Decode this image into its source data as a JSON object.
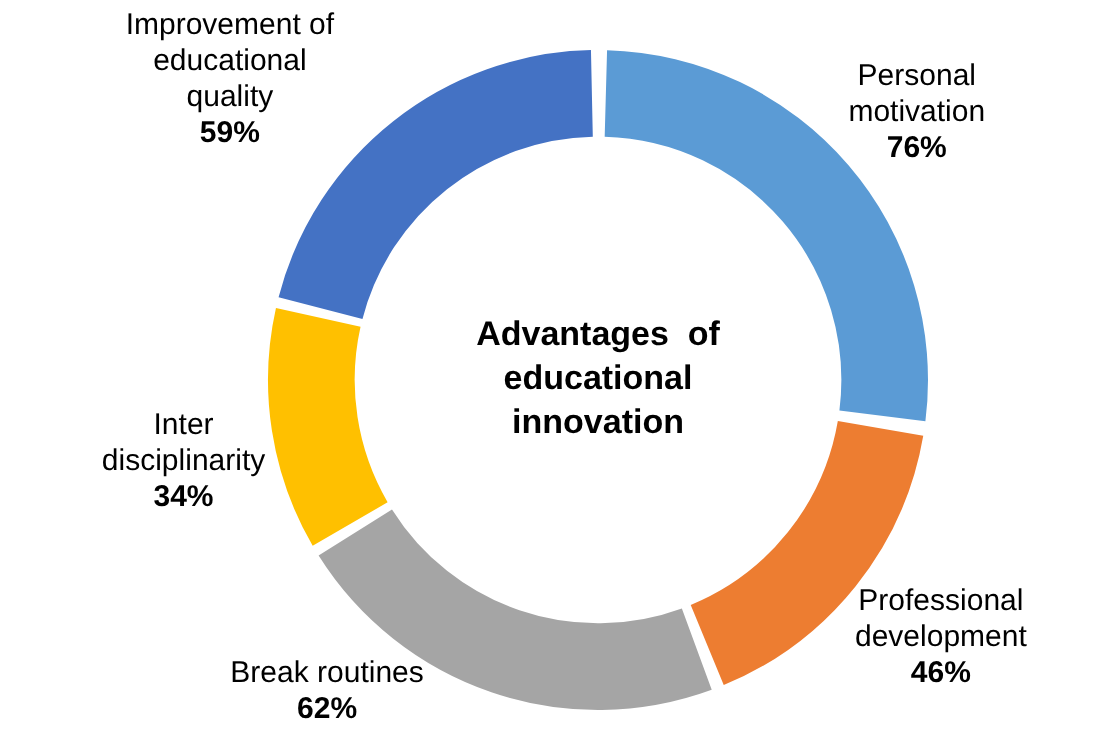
{
  "chart_data": {
    "type": "donut",
    "title": "Advantages  of educational innovation",
    "categories": [
      "Personal motivation",
      "Professional development",
      "Break routines",
      "Inter disciplinarity",
      "Improvement of educational quality"
    ],
    "values": [
      76,
      46,
      62,
      34,
      59
    ],
    "value_labels": [
      "76%",
      "46%",
      "62%",
      "34%",
      "59%"
    ],
    "colors": [
      "#5b9bd5",
      "#ed7d31",
      "#a5a5a5",
      "#ffc000",
      "#4472c4"
    ],
    "legend": false
  }
}
